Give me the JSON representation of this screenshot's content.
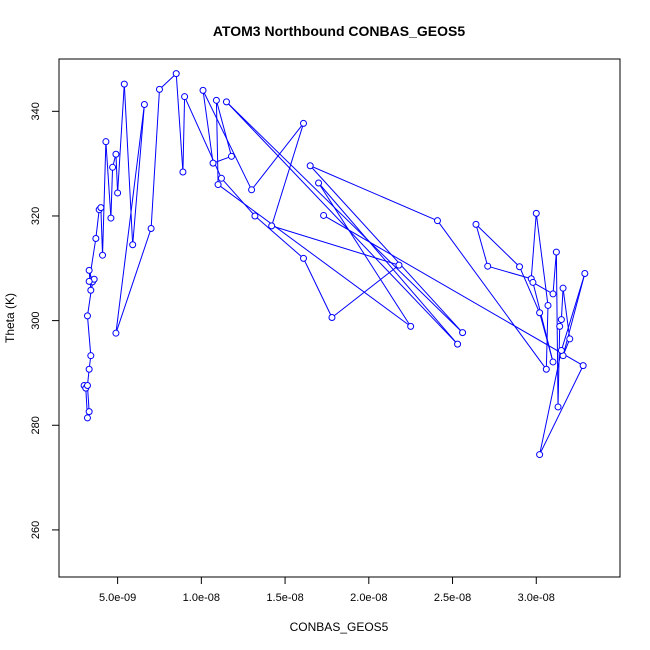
{
  "chart_data": {
    "type": "line",
    "title": "ATOM3 Northbound CONBAS_GEOS5",
    "xlabel": "CONBAS_GEOS5",
    "ylabel": "Theta (K)",
    "xlim": [
      1.5e-09,
      3.5e-08
    ],
    "ylim": [
      251,
      350
    ],
    "xticks": [
      5e-09,
      1e-08,
      1.5e-08,
      2e-08,
      2.5e-08,
      3e-08
    ],
    "xtick_labels": [
      "5.0e-09",
      "1.0e-08",
      "1.5e-08",
      "2.0e-08",
      "2.5e-08",
      "3.0e-08"
    ],
    "yticks": [
      260,
      280,
      300,
      320,
      340
    ],
    "ytick_labels": [
      "260",
      "280",
      "300",
      "320",
      "340"
    ],
    "grid": false,
    "legend": "none",
    "marker": "open-circle",
    "color": "#0000ff",
    "series": [
      {
        "points": [
          [
            3e-09,
            287.6
          ],
          [
            3.1e-09,
            287.1
          ],
          [
            3.2e-09,
            281.4
          ],
          [
            3.3e-09,
            282.6
          ],
          [
            3.2e-09,
            287.6
          ],
          [
            3.3e-09,
            290.7
          ],
          [
            3.4e-09,
            293.3
          ],
          [
            3.2e-09,
            300.9
          ],
          [
            3.5e-09,
            307.4
          ],
          [
            3.3e-09,
            309.6
          ],
          [
            3.4e-09,
            305.8
          ],
          [
            3.6e-09,
            307.9
          ],
          [
            3.3e-09,
            307.5
          ],
          [
            3.7e-09,
            315.7
          ],
          [
            3.9e-09,
            321.2
          ],
          [
            4e-09,
            321.6
          ],
          [
            4.1e-09,
            312.5
          ],
          [
            4.3e-09,
            334.2
          ],
          [
            4.6e-09,
            319.6
          ],
          [
            4.7e-09,
            329.3
          ],
          [
            4.9e-09,
            331.8
          ],
          [
            5e-09,
            324.4
          ],
          [
            5.4e-09,
            345.2
          ],
          [
            5.9e-09,
            314.5
          ],
          [
            6.6e-09,
            341.3
          ],
          [
            4.9e-09,
            297.6
          ],
          [
            7e-09,
            317.6
          ],
          [
            7.5e-09,
            344.2
          ],
          [
            8.5e-09,
            347.2
          ],
          [
            8.9e-09,
            328.4
          ],
          [
            9e-09,
            342.8
          ],
          [
            1.12e-08,
            327.2
          ],
          [
            1.32e-08,
            320.0
          ],
          [
            1.61e-08,
            311.9
          ],
          [
            1.78e-08,
            300.6
          ],
          [
            2.18e-08,
            310.6
          ],
          [
            1.42e-08,
            318.1
          ],
          [
            1.61e-08,
            337.7
          ],
          [
            1.3e-08,
            325.0
          ],
          [
            1.01e-08,
            344.0
          ],
          [
            1.07e-08,
            330.1
          ],
          [
            1.18e-08,
            331.4
          ],
          [
            1.09e-08,
            342.1
          ],
          [
            1.1e-08,
            326.0
          ],
          [
            2.25e-08,
            298.9
          ],
          [
            1.7e-08,
            326.3
          ],
          [
            2.53e-08,
            295.5
          ],
          [
            1.15e-08,
            341.8
          ],
          [
            2.56e-08,
            297.7
          ],
          [
            1.65e-08,
            329.6
          ],
          [
            2.41e-08,
            319.1
          ],
          [
            3.06e-08,
            290.7
          ],
          [
            3.07e-08,
            302.9
          ],
          [
            3e-08,
            320.5
          ],
          [
            2.97e-08,
            308.0
          ],
          [
            2.71e-08,
            310.4
          ],
          [
            2.64e-08,
            318.4
          ],
          [
            2.9e-08,
            310.3
          ],
          [
            3.02e-08,
            301.5
          ],
          [
            3.1e-08,
            292.1
          ],
          [
            2.98e-08,
            307.3
          ],
          [
            3.1e-08,
            305.1
          ],
          [
            3.12e-08,
            313.1
          ],
          [
            3.13e-08,
            283.5
          ],
          [
            3.14e-08,
            298.9
          ],
          [
            3.15e-08,
            300.2
          ],
          [
            3.16e-08,
            306.2
          ],
          [
            3.2e-08,
            296.5
          ],
          [
            3.16e-08,
            293.3
          ],
          [
            3.29e-08,
            309.0
          ],
          [
            3.15e-08,
            294.3
          ],
          [
            3.02e-08,
            274.4
          ],
          [
            3.28e-08,
            291.4
          ],
          [
            1.73e-08,
            320.1
          ]
        ]
      }
    ]
  }
}
